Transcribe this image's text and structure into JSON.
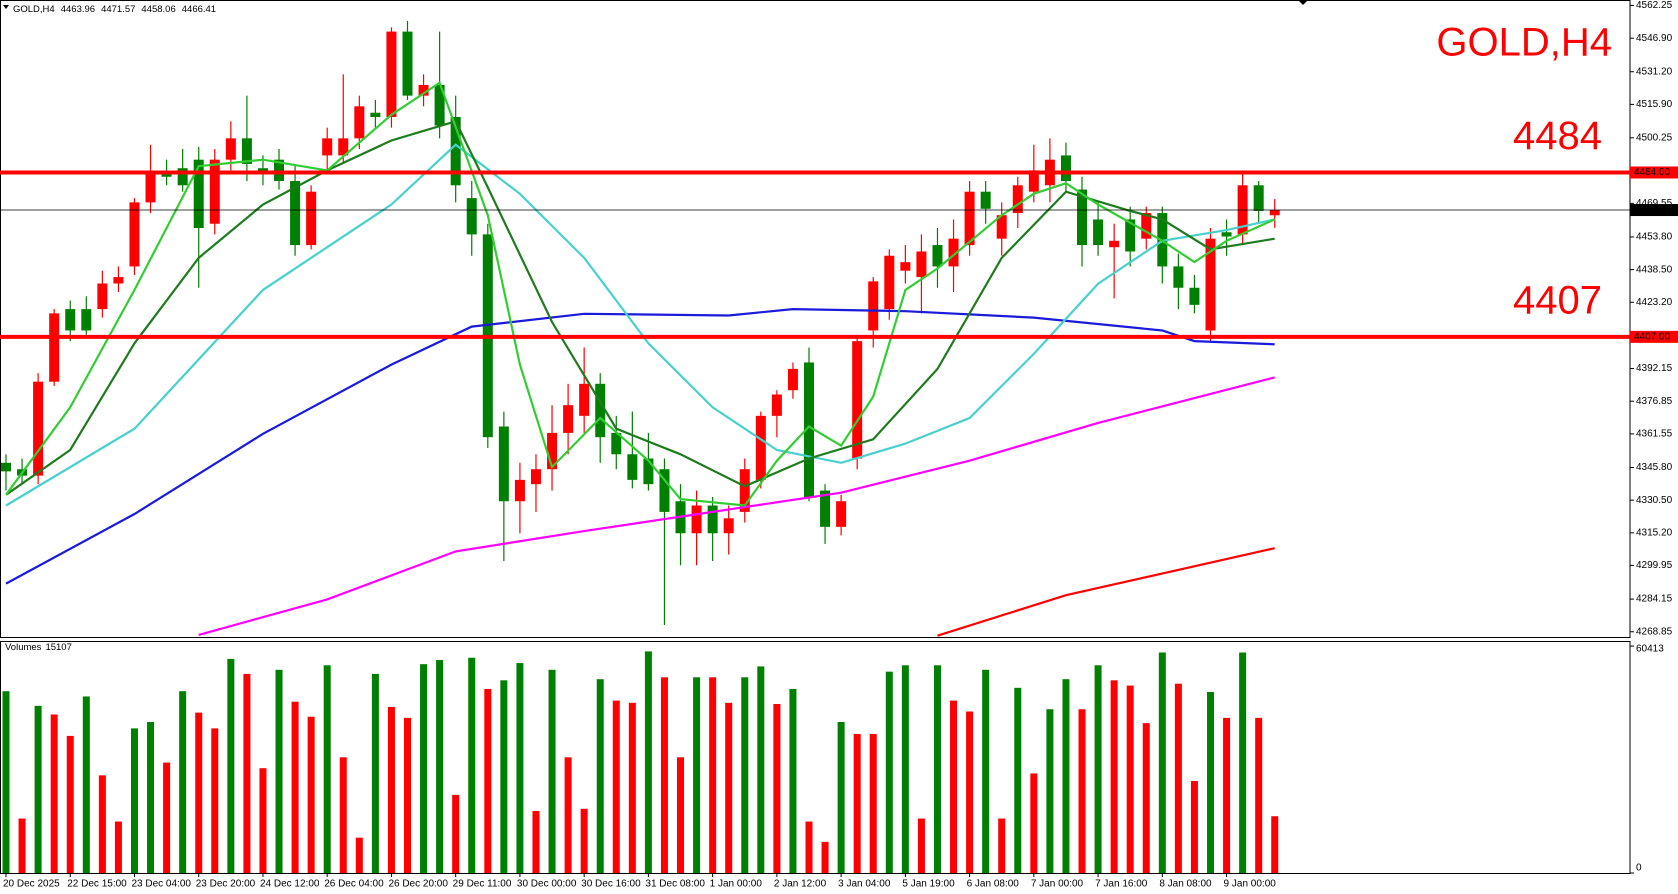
{
  "chart_data": [
    {
      "type": "candlestick",
      "title": "GOLD,H4",
      "categories": [
        "20 Dec 2025",
        null,
        null,
        null,
        "22 Dec 15:00",
        null,
        null,
        null,
        "23 Dec 04:00",
        null,
        null,
        null,
        "23 Dec 20:00",
        null,
        null,
        null,
        "24 Dec 12:00",
        null,
        null,
        null,
        "26 Dec 04:00",
        null,
        null,
        null,
        "26 Dec 20:00",
        null,
        null,
        null,
        "29 Dec 11:00",
        null,
        null,
        null,
        "30 Dec 00:00",
        null,
        null,
        null,
        "30 Dec 16:00",
        null,
        null,
        null,
        "31 Dec 08:00",
        null,
        null,
        null,
        "1 Jan 00:00",
        null,
        null,
        null,
        "2 Jan 12:00",
        null,
        null,
        null,
        "3 Jan 04:00",
        null,
        null,
        null,
        "5 Jan 19:00",
        null,
        null,
        null,
        "6 Jan 08:00",
        null,
        null,
        null,
        "7 Jan 00:00",
        null,
        null,
        null,
        "7 Jan 16:00",
        null,
        null,
        null,
        "8 Jan 08:00",
        null,
        null,
        null,
        "9 Jan 00:00",
        null,
        null,
        null
      ],
      "open": [
        4348,
        4345,
        4342,
        4386,
        4420,
        4420,
        4420,
        4432,
        4440,
        4470,
        4484,
        4486,
        4490,
        4460,
        4490,
        4500,
        4486,
        4490,
        4480,
        4450,
        4492,
        4492,
        4500,
        4512,
        4510,
        4550,
        4520,
        4525,
        4510,
        4472,
        4455,
        4365,
        4330,
        4338,
        4345,
        4362,
        4370,
        4385,
        4362,
        4352,
        4350,
        4345,
        4330,
        4315,
        4328,
        4315,
        4325,
        4340,
        4370,
        4382,
        4395,
        4335,
        4318,
        4350,
        4410,
        4420,
        4438,
        4435,
        4450,
        4440,
        4450,
        4475,
        4453,
        4465,
        4475,
        4478,
        4492,
        4476,
        4462,
        4449,
        4462,
        4453,
        4465,
        4440,
        4430,
        4410,
        4456,
        4455,
        4478,
        4463.96
      ],
      "high": [
        4352,
        4350,
        4390,
        4420,
        4424,
        4426,
        4438,
        4440,
        4472,
        4497,
        4490,
        4495,
        4496,
        4495,
        4508,
        4520,
        4492,
        4495,
        4488,
        4478,
        4505,
        4530,
        4520,
        4518,
        4552,
        4555,
        4530,
        4550,
        4520,
        4480,
        4460,
        4372,
        4348,
        4352,
        4375,
        4385,
        4402,
        4390,
        4370,
        4372,
        4362,
        4350,
        4338,
        4335,
        4332,
        4328,
        4350,
        4372,
        4382,
        4395,
        4402,
        4338,
        4333,
        4408,
        4435,
        4448,
        4450,
        4455,
        4458,
        4462,
        4480,
        4480,
        4470,
        4482,
        4497,
        4500,
        4498,
        4482,
        4470,
        4460,
        4468,
        4468,
        4468,
        4446,
        4436,
        4458,
        4462,
        4485,
        4480,
        4471.57
      ],
      "low": [
        4335,
        4338,
        4338,
        4384,
        4405,
        4408,
        4416,
        4428,
        4436,
        4465,
        4478,
        4475,
        4430,
        4455,
        4485,
        4480,
        4478,
        4476,
        4445,
        4448,
        4485,
        4488,
        4495,
        4505,
        4505,
        4518,
        4515,
        4500,
        4470,
        4445,
        4355,
        4302,
        4315,
        4325,
        4335,
        4352,
        4362,
        4348,
        4345,
        4336,
        4335,
        4272,
        4300,
        4300,
        4302,
        4305,
        4320,
        4336,
        4360,
        4378,
        4330,
        4310,
        4314,
        4345,
        4402,
        4415,
        4432,
        4418,
        4430,
        4428,
        4445,
        4460,
        4445,
        4458,
        4470,
        4470,
        4475,
        4440,
        4445,
        4425,
        4440,
        4448,
        4432,
        4420,
        4418,
        4405,
        4445,
        4450,
        4460,
        4458.06
      ],
      "close": [
        4344,
        4342,
        4386,
        4418,
        4410,
        4410,
        4432,
        4435,
        4470,
        4484,
        4482,
        4478,
        4458,
        4490,
        4500,
        4488,
        4484,
        4480,
        4450,
        4475,
        4500,
        4500,
        4515,
        4510,
        4550,
        4520,
        4525,
        4506,
        4478,
        4455,
        4360,
        4330,
        4340,
        4345,
        4362,
        4375,
        4385,
        4360,
        4352,
        4340,
        4338,
        4325,
        4315,
        4328,
        4315,
        4322,
        4345,
        4370,
        4380,
        4392,
        4332,
        4318,
        4330,
        4405,
        4433,
        4445,
        4442,
        4447,
        4440,
        4453,
        4475,
        4467,
        4464,
        4478,
        4485,
        4490,
        4480,
        4450,
        4450,
        4452,
        4447,
        4465,
        4440,
        4430,
        4422,
        4453,
        4454,
        4478,
        4466,
        4466.41
      ],
      "up_color": "#ff0000",
      "down_color": "#008000",
      "lines": [
        {
          "color": "#1a1adb",
          "x": [
            0,
            8,
            16,
            24,
            29,
            36,
            45,
            49,
            56,
            64,
            72,
            74,
            79
          ],
          "values": [
            4291.4,
            4324,
            4361.6,
            4394,
            4411.8,
            4417.8,
            4417,
            4420,
            4419,
            4416,
            4410,
            4405,
            4403.5
          ]
        },
        {
          "color": "#ff00ff",
          "x": [
            12,
            20,
            28,
            36,
            44,
            52,
            60,
            68,
            79
          ],
          "values": [
            4267.4,
            4284,
            4306.5,
            4316,
            4325,
            4334,
            4349,
            4366.7,
            4388
          ]
        },
        {
          "color": "#ff0000",
          "x": [
            58,
            66,
            79
          ],
          "values": [
            4267,
            4286,
            4308
          ]
        },
        {
          "color": "#48d1cc",
          "x": [
            0,
            8,
            16,
            24,
            28,
            32,
            36,
            40,
            44,
            48,
            52,
            56,
            60,
            64,
            68,
            72,
            76,
            79
          ],
          "values": [
            4328,
            4364,
            4429,
            4469,
            4497,
            4474,
            4444,
            4404,
            4374,
            4354,
            4348,
            4357,
            4369,
            4399,
            4431.9,
            4452,
            4457,
            4462
          ]
        },
        {
          "color": "#1e7b1e",
          "x": [
            0,
            4,
            8,
            12,
            16,
            20,
            24,
            28,
            30,
            34,
            38,
            42,
            46,
            50,
            54,
            58,
            62,
            66,
            70,
            72,
            75,
            79
          ],
          "values": [
            4333,
            4354,
            4404,
            4444,
            4469,
            4485,
            4499,
            4508,
            4477,
            4414,
            4364,
            4352,
            4337,
            4350,
            4359,
            4392,
            4444,
            4475,
            4466,
            4462,
            4448,
            4453
          ]
        },
        {
          "color": "#32cd32",
          "x": [
            0,
            4,
            8,
            12,
            16,
            20,
            24,
            27,
            30,
            32,
            34,
            37,
            40,
            42,
            46,
            48,
            50,
            52,
            54,
            56,
            58,
            62,
            64,
            66,
            68,
            72,
            74,
            76,
            79
          ],
          "values": [
            4333,
            4374,
            4429,
            4487,
            4490,
            4485,
            4511,
            4526,
            4464,
            4394,
            4346,
            4369,
            4349,
            4331,
            4328,
            4349,
            4365,
            4356,
            4379,
            4429,
            4439,
            4464,
            4474,
            4479,
            4469,
            4452,
            4442,
            4452,
            4462
          ]
        }
      ],
      "hlines": [
        {
          "value": 4484,
          "label": "4484.00",
          "note": "4484",
          "color": "#ff0000"
        },
        {
          "value": 4407,
          "label": "4407.00",
          "note": "4407",
          "color": "#ff0000"
        }
      ],
      "last": 4466.41,
      "ylim": [
        4266.4,
        4564.8
      ],
      "yticks": [
        4562.25,
        {
          "value": 4546.9,
          "label": "4546.90"
        },
        {
          "value": 4531.2,
          "label": "4531.20"
        },
        {
          "value": 4515.9,
          "label": "4515.90"
        },
        4500.25,
        4469.55,
        {
          "value": 4453.8,
          "label": "4453.80"
        },
        {
          "value": 4438.5,
          "label": "4438.50"
        },
        {
          "value": 4423.2,
          "label": "4423.20"
        },
        4392.15,
        4376.85,
        4361.55,
        {
          "value": 4345.8,
          "label": "4345.80"
        },
        {
          "value": 4330.5,
          "label": "4330.50"
        },
        {
          "value": 4315.2,
          "label": "4315.20"
        },
        4299.95,
        4284.15,
        4268.85
      ]
    },
    {
      "type": "bar",
      "title": "Volumes",
      "values": [
        48400,
        14500,
        44500,
        42200,
        36500,
        47000,
        26000,
        13700,
        38500,
        40200,
        29400,
        48400,
        42700,
        38500,
        57000,
        53000,
        27900,
        54100,
        45600,
        41600,
        55300,
        30800,
        9400,
        53000,
        44200,
        41300,
        55600,
        56700,
        20800,
        57300,
        49000,
        51300,
        55900,
        16500,
        54100,
        30800,
        17100,
        51600,
        45900,
        45300,
        59000,
        52100,
        30800,
        52100,
        52100,
        45300,
        52100,
        55000,
        45000,
        49000,
        13700,
        8300,
        40200,
        37000,
        37000,
        53600,
        55300,
        14500,
        55300,
        45900,
        43000,
        54100,
        14500,
        49300,
        26500,
        43600,
        51600,
        43600,
        55300,
        51300,
        49900,
        39900,
        58700,
        50400,
        24500,
        48200,
        41300,
        58700,
        41300,
        15107
      ],
      "up_color": "#008000",
      "down_color": "#ff0000",
      "ylim": [
        0,
        61500
      ],
      "yticks": [
        60413,
        0
      ]
    }
  ]
}
